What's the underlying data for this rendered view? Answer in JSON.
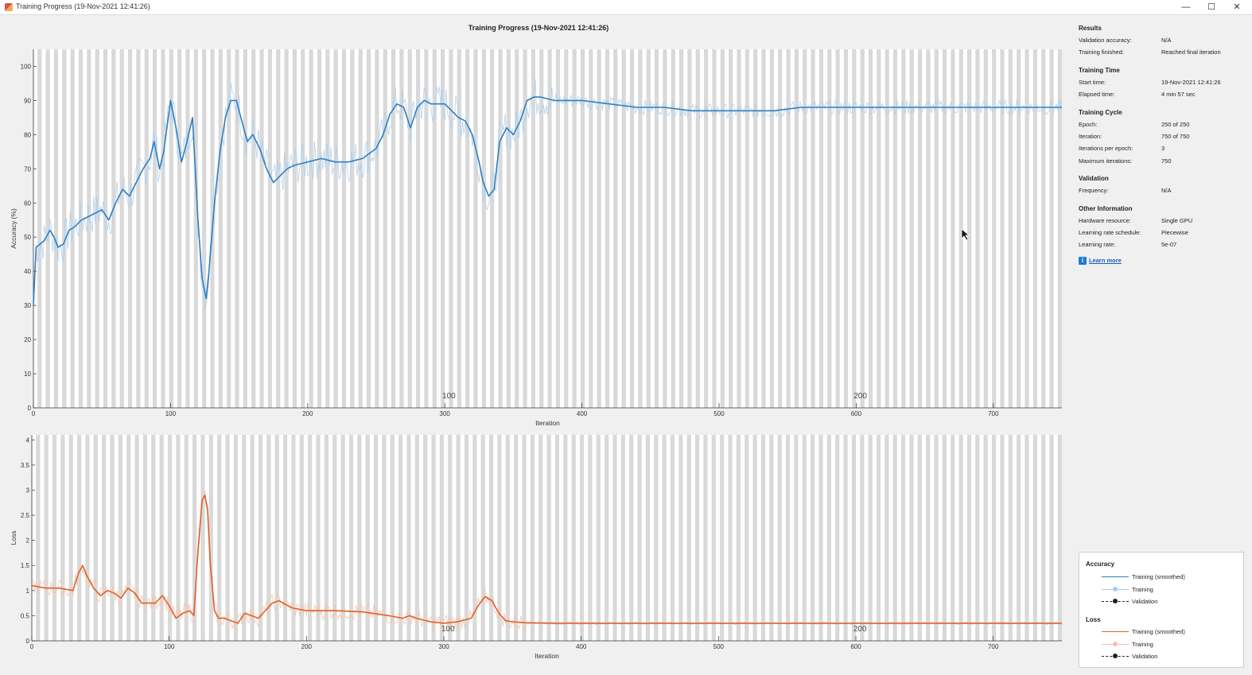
{
  "window": {
    "title": "Training Progress (19-Nov-2021 12:41:26)",
    "minimize_icon": "minimize-icon",
    "maximize_icon": "maximize-icon",
    "close_icon": "close-icon"
  },
  "plot_title": "Training Progress (19-Nov-2021 12:41:26)",
  "info": {
    "results": {
      "heading": "Results",
      "rows": [
        {
          "label": "Validation accuracy:",
          "value": "N/A"
        },
        {
          "label": "Training finished:",
          "value": "Reached final iteration"
        }
      ]
    },
    "training_time": {
      "heading": "Training Time",
      "rows": [
        {
          "label": "Start time:",
          "value": "19-Nov-2021 12:41:26"
        },
        {
          "label": "Elapsed time:",
          "value": "4 min 57 sec"
        }
      ]
    },
    "training_cycle": {
      "heading": "Training Cycle",
      "rows": [
        {
          "label": "Epoch:",
          "value": "250 of 250"
        },
        {
          "label": "Iteration:",
          "value": "750 of 750"
        },
        {
          "label": "Iterations per epoch:",
          "value": "3"
        },
        {
          "label": "Maximum iterations:",
          "value": "750"
        }
      ]
    },
    "validation": {
      "heading": "Validation",
      "rows": [
        {
          "label": "Frequency:",
          "value": "N/A"
        }
      ]
    },
    "other": {
      "heading": "Other Information",
      "rows": [
        {
          "label": "Hardware resource:",
          "value": "Single GPU"
        },
        {
          "label": "Learning rate schedule:",
          "value": "Piecewise"
        },
        {
          "label": "Learning rate:",
          "value": "5e-07"
        }
      ]
    },
    "learn_more": "Learn more"
  },
  "legend": {
    "accuracy_heading": "Accuracy",
    "loss_heading": "Loss",
    "items": [
      "Training (smoothed)",
      "Training",
      "Validation"
    ]
  },
  "colors": {
    "accuracy": "#2f7fc1",
    "accuracy_raw": "#a9cdee",
    "loss": "#e0602a",
    "loss_raw": "#f5c1a8",
    "epoch_band": "#d9d9d9"
  },
  "chart_data": [
    {
      "type": "line",
      "ylabel": "Accuracy (%)",
      "xlabel": "Iteration",
      "xlim": [
        0,
        750
      ],
      "ylim": [
        0,
        105
      ],
      "xticks": [
        0,
        100,
        200,
        300,
        400,
        500,
        600,
        700
      ],
      "yticks": [
        0,
        10,
        20,
        30,
        40,
        50,
        60,
        70,
        80,
        90,
        100
      ],
      "epoch_labels": [
        {
          "x": 303,
          "label": "100"
        },
        {
          "x": 603,
          "label": "200"
        }
      ],
      "series": [
        {
          "name": "Training (smoothed)",
          "x": [
            0,
            2,
            5,
            8,
            12,
            15,
            18,
            22,
            26,
            30,
            35,
            40,
            45,
            50,
            55,
            60,
            65,
            70,
            75,
            80,
            85,
            88,
            92,
            95,
            100,
            104,
            108,
            112,
            116,
            120,
            123,
            126,
            128,
            132,
            136,
            140,
            144,
            148,
            152,
            156,
            160,
            165,
            170,
            175,
            180,
            185,
            190,
            200,
            210,
            220,
            230,
            240,
            250,
            255,
            260,
            265,
            270,
            275,
            280,
            285,
            290,
            300,
            310,
            315,
            320,
            325,
            328,
            332,
            336,
            340,
            345,
            350,
            355,
            360,
            365,
            370,
            380,
            400,
            420,
            440,
            460,
            480,
            500,
            520,
            540,
            560,
            580,
            600,
            620,
            640,
            660,
            680,
            700,
            720,
            750
          ],
          "y": [
            30,
            47,
            48,
            49,
            52,
            50,
            47,
            48,
            52,
            53,
            55,
            56,
            57,
            58,
            55,
            60,
            64,
            62,
            66,
            70,
            73,
            78,
            70,
            75,
            90,
            82,
            72,
            78,
            85,
            55,
            38,
            32,
            40,
            60,
            75,
            85,
            90,
            90,
            84,
            78,
            80,
            76,
            70,
            66,
            68,
            70,
            71,
            72,
            73,
            72,
            72,
            73,
            76,
            80,
            86,
            89,
            88,
            82,
            88,
            90,
            89,
            89,
            85,
            84,
            80,
            72,
            66,
            62,
            64,
            78,
            82,
            80,
            84,
            90,
            91,
            91,
            90,
            90,
            89,
            88,
            88,
            87,
            87,
            87,
            87,
            88,
            88,
            88,
            88,
            88,
            88,
            88,
            88,
            88,
            88
          ]
        }
      ]
    },
    {
      "type": "line",
      "ylabel": "Loss",
      "xlabel": "Iteration",
      "xlim": [
        0,
        750
      ],
      "ylim": [
        0,
        4.1
      ],
      "xticks": [
        0,
        100,
        200,
        300,
        400,
        500,
        600,
        700
      ],
      "yticks": [
        0,
        0.5,
        1,
        1.5,
        2,
        2.5,
        3,
        3.5,
        4
      ],
      "epoch_labels": [
        {
          "x": 303,
          "label": "100"
        },
        {
          "x": 603,
          "label": "200"
        }
      ],
      "series": [
        {
          "name": "Training (smoothed)",
          "x": [
            0,
            10,
            20,
            30,
            34,
            37,
            40,
            45,
            50,
            55,
            60,
            65,
            70,
            75,
            80,
            90,
            95,
            100,
            105,
            110,
            115,
            118,
            121,
            124,
            126,
            128,
            130,
            133,
            136,
            140,
            145,
            150,
            155,
            160,
            165,
            170,
            175,
            180,
            185,
            190,
            200,
            220,
            240,
            260,
            270,
            275,
            280,
            290,
            300,
            310,
            320,
            325,
            330,
            335,
            340,
            345,
            350,
            360,
            380,
            400,
            450,
            500,
            550,
            600,
            650,
            700,
            750
          ],
          "y": [
            1.1,
            1.05,
            1.05,
            1.0,
            1.35,
            1.5,
            1.3,
            1.05,
            0.9,
            1.0,
            0.95,
            0.85,
            1.05,
            0.95,
            0.75,
            0.75,
            0.9,
            0.7,
            0.45,
            0.55,
            0.6,
            0.5,
            1.8,
            2.8,
            2.9,
            2.6,
            1.5,
            0.6,
            0.45,
            0.45,
            0.4,
            0.35,
            0.55,
            0.5,
            0.45,
            0.6,
            0.75,
            0.8,
            0.72,
            0.65,
            0.6,
            0.6,
            0.58,
            0.5,
            0.45,
            0.5,
            0.45,
            0.38,
            0.35,
            0.38,
            0.45,
            0.7,
            0.88,
            0.8,
            0.55,
            0.4,
            0.38,
            0.36,
            0.35,
            0.35,
            0.35,
            0.35,
            0.35,
            0.35,
            0.35,
            0.35,
            0.35
          ]
        }
      ]
    }
  ]
}
